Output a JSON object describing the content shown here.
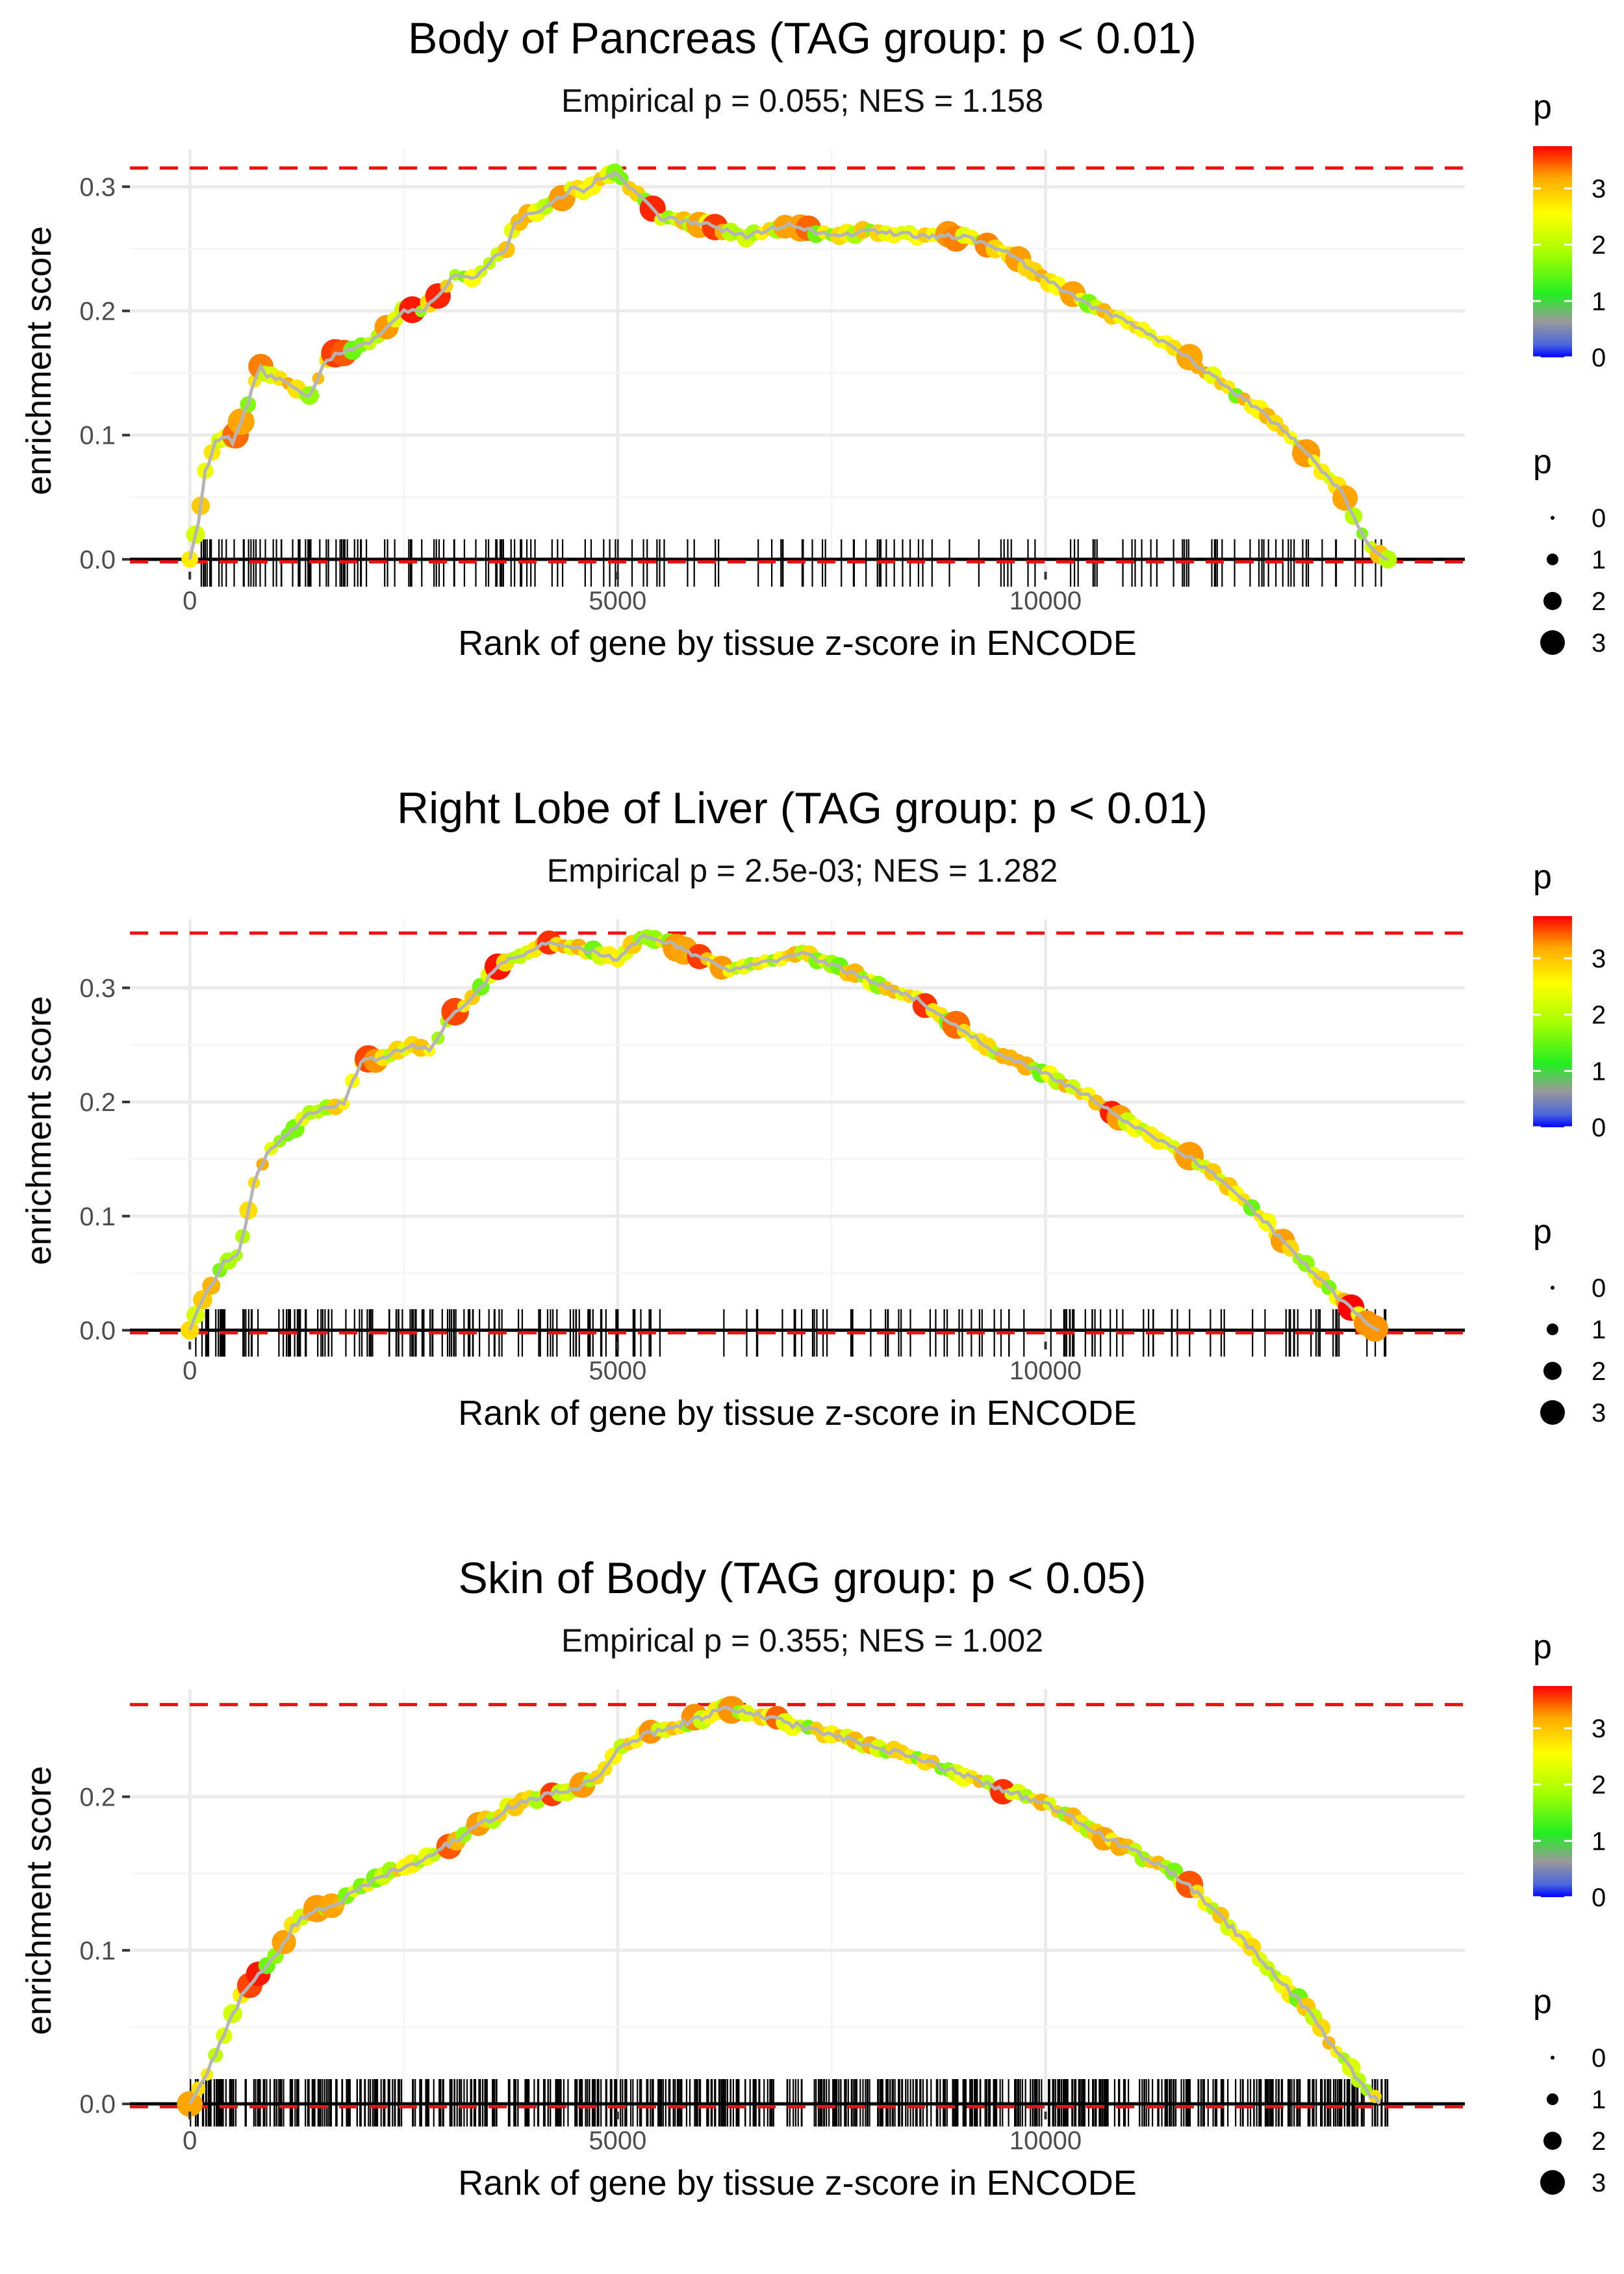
{
  "chart_data": [
    {
      "type": "line",
      "title": "Body of Pancreas (TAG group: p < 0.01)",
      "subtitle": "Empirical p = 0.055; NES = 1.158",
      "xlabel": "Rank of gene by tissue z-score in ENCODE",
      "ylabel": "enrichment score",
      "xlim": [
        -700,
        14900
      ],
      "ylim": [
        -0.01,
        0.33
      ],
      "xticks": [
        0,
        5000,
        10000
      ],
      "xtick_labels": [
        "0",
        "5000",
        "10000"
      ],
      "yticks": [
        0.0,
        0.1,
        0.2,
        0.3
      ],
      "ytick_labels": [
        "0.0",
        "0.1",
        "0.2",
        "0.3"
      ],
      "max_es": 0.315,
      "min_es": -0.001,
      "curve": [
        [
          0,
          0
        ],
        [
          100,
          0.03
        ],
        [
          180,
          0.07
        ],
        [
          300,
          0.095
        ],
        [
          420,
          0.1
        ],
        [
          500,
          0.095
        ],
        [
          600,
          0.11
        ],
        [
          720,
          0.135
        ],
        [
          830,
          0.155
        ],
        [
          900,
          0.148
        ],
        [
          1100,
          0.145
        ],
        [
          1300,
          0.135
        ],
        [
          1400,
          0.13
        ],
        [
          1550,
          0.155
        ],
        [
          1700,
          0.165
        ],
        [
          1900,
          0.17
        ],
        [
          2100,
          0.175
        ],
        [
          2300,
          0.185
        ],
        [
          2500,
          0.2
        ],
        [
          2700,
          0.2
        ],
        [
          2900,
          0.21
        ],
        [
          3100,
          0.23
        ],
        [
          3300,
          0.225
        ],
        [
          3500,
          0.24
        ],
        [
          3700,
          0.25
        ],
        [
          3800,
          0.27
        ],
        [
          3950,
          0.28
        ],
        [
          4100,
          0.28
        ],
        [
          4300,
          0.29
        ],
        [
          4500,
          0.3
        ],
        [
          4600,
          0.295
        ],
        [
          4750,
          0.305
        ],
        [
          4900,
          0.31
        ],
        [
          5000,
          0.31
        ],
        [
          5500,
          0.275
        ],
        [
          6000,
          0.27
        ],
        [
          6500,
          0.26
        ],
        [
          7000,
          0.27
        ],
        [
          7500,
          0.26
        ],
        [
          8000,
          0.265
        ],
        [
          8500,
          0.26
        ],
        [
          9000,
          0.26
        ],
        [
          9500,
          0.25
        ],
        [
          10000,
          0.225
        ],
        [
          10500,
          0.205
        ],
        [
          11000,
          0.19
        ],
        [
          11500,
          0.17
        ],
        [
          12000,
          0.145
        ],
        [
          12500,
          0.12
        ],
        [
          13000,
          0.09
        ],
        [
          13500,
          0.05
        ],
        [
          13700,
          0.02
        ],
        [
          13850,
          0.005
        ],
        [
          14000,
          0
        ]
      ],
      "hits": {
        "seed": 11,
        "count": 170,
        "ranges": [
          [
            0,
            5000,
            0.5
          ],
          [
            5000,
            10000,
            0.25
          ],
          [
            10000,
            14000,
            0.25
          ]
        ]
      },
      "legend_color": {
        "title": "p",
        "ticks": [
          "0",
          "1",
          "2",
          "3"
        ]
      },
      "legend_size": {
        "title": "p",
        "labels": [
          "0",
          "1",
          "2",
          "3"
        ]
      }
    },
    {
      "type": "line",
      "title": "Right Lobe of Liver (TAG group: p < 0.01)",
      "subtitle": "Empirical p = 2.5e-03; NES = 1.282",
      "xlabel": "Rank of gene by tissue z-score in ENCODE",
      "ylabel": "enrichment score",
      "xlim": [
        -700,
        14900
      ],
      "ylim": [
        -0.01,
        0.36
      ],
      "xticks": [
        0,
        5000,
        10000
      ],
      "xtick_labels": [
        "0",
        "5000",
        "10000"
      ],
      "yticks": [
        0.0,
        0.1,
        0.2,
        0.3
      ],
      "ytick_labels": [
        "0.0",
        "0.1",
        "0.2",
        "0.3"
      ],
      "max_es": 0.348,
      "min_es": -0.001,
      "curve": [
        [
          0,
          0
        ],
        [
          100,
          0.02
        ],
        [
          250,
          0.04
        ],
        [
          400,
          0.06
        ],
        [
          550,
          0.065
        ],
        [
          650,
          0.09
        ],
        [
          750,
          0.13
        ],
        [
          900,
          0.155
        ],
        [
          1100,
          0.17
        ],
        [
          1400,
          0.19
        ],
        [
          1600,
          0.195
        ],
        [
          1800,
          0.2
        ],
        [
          2000,
          0.235
        ],
        [
          2300,
          0.24
        ],
        [
          2600,
          0.25
        ],
        [
          2800,
          0.245
        ],
        [
          3000,
          0.27
        ],
        [
          3200,
          0.285
        ],
        [
          3400,
          0.3
        ],
        [
          3600,
          0.32
        ],
        [
          3900,
          0.33
        ],
        [
          4200,
          0.34
        ],
        [
          4500,
          0.335
        ],
        [
          4800,
          0.33
        ],
        [
          5000,
          0.325
        ],
        [
          5300,
          0.345
        ],
        [
          5600,
          0.34
        ],
        [
          6000,
          0.325
        ],
        [
          6300,
          0.315
        ],
        [
          6600,
          0.32
        ],
        [
          6900,
          0.325
        ],
        [
          7200,
          0.33
        ],
        [
          7500,
          0.32
        ],
        [
          8000,
          0.305
        ],
        [
          8500,
          0.29
        ],
        [
          9000,
          0.265
        ],
        [
          9500,
          0.24
        ],
        [
          10000,
          0.225
        ],
        [
          10500,
          0.205
        ],
        [
          11000,
          0.18
        ],
        [
          11500,
          0.16
        ],
        [
          12000,
          0.135
        ],
        [
          12500,
          0.1
        ],
        [
          13000,
          0.06
        ],
        [
          13400,
          0.03
        ],
        [
          13700,
          0.01
        ],
        [
          13900,
          0
        ]
      ],
      "hits": {
        "seed": 23,
        "count": 210,
        "ranges": [
          [
            0,
            5000,
            0.55
          ],
          [
            5000,
            10000,
            0.22
          ],
          [
            10000,
            14000,
            0.23
          ]
        ]
      },
      "legend_color": {
        "title": "p",
        "ticks": [
          "0",
          "1",
          "2",
          "3"
        ]
      },
      "legend_size": {
        "title": "p",
        "labels": [
          "0",
          "1",
          "2",
          "3"
        ]
      }
    },
    {
      "type": "line",
      "title": "Skin of Body (TAG group: p < 0.05)",
      "subtitle": "Empirical p = 0.355; NES = 1.002",
      "xlabel": "Rank of gene by tissue z-score in ENCODE",
      "ylabel": "enrichment score",
      "xlim": [
        -700,
        14900
      ],
      "ylim": [
        -0.005,
        0.27
      ],
      "xticks": [
        0,
        5000,
        10000
      ],
      "xtick_labels": [
        "0",
        "5000",
        "10000"
      ],
      "yticks": [
        0.0,
        0.1,
        0.2
      ],
      "ytick_labels": [
        "0.0",
        "0.1",
        "0.2"
      ],
      "max_es": 0.26,
      "min_es": -0.001,
      "curve": [
        [
          0,
          0
        ],
        [
          200,
          0.02
        ],
        [
          400,
          0.045
        ],
        [
          600,
          0.07
        ],
        [
          800,
          0.085
        ],
        [
          1000,
          0.095
        ],
        [
          1200,
          0.115
        ],
        [
          1400,
          0.125
        ],
        [
          1700,
          0.13
        ],
        [
          2000,
          0.14
        ],
        [
          2300,
          0.15
        ],
        [
          2600,
          0.155
        ],
        [
          2900,
          0.165
        ],
        [
          3200,
          0.175
        ],
        [
          3500,
          0.185
        ],
        [
          3800,
          0.195
        ],
        [
          4100,
          0.2
        ],
        [
          4500,
          0.205
        ],
        [
          4800,
          0.215
        ],
        [
          5000,
          0.23
        ],
        [
          5300,
          0.24
        ],
        [
          5600,
          0.245
        ],
        [
          5900,
          0.25
        ],
        [
          6200,
          0.257
        ],
        [
          6500,
          0.255
        ],
        [
          7000,
          0.248
        ],
        [
          7500,
          0.24
        ],
        [
          8000,
          0.232
        ],
        [
          8500,
          0.225
        ],
        [
          9000,
          0.215
        ],
        [
          9500,
          0.205
        ],
        [
          10000,
          0.195
        ],
        [
          10500,
          0.18
        ],
        [
          11000,
          0.165
        ],
        [
          11500,
          0.15
        ],
        [
          12000,
          0.125
        ],
        [
          12500,
          0.095
        ],
        [
          13000,
          0.065
        ],
        [
          13400,
          0.035
        ],
        [
          13700,
          0.012
        ],
        [
          13900,
          0
        ]
      ],
      "hits": {
        "seed": 37,
        "count": 650,
        "ranges": [
          [
            0,
            5000,
            0.36
          ],
          [
            5000,
            10000,
            0.36
          ],
          [
            10000,
            14000,
            0.28
          ]
        ]
      },
      "legend_color": {
        "title": "p",
        "ticks": [
          "0",
          "1",
          "2",
          "3"
        ]
      },
      "legend_size": {
        "title": "p",
        "labels": [
          "0",
          "1",
          "2",
          "3"
        ]
      }
    }
  ]
}
